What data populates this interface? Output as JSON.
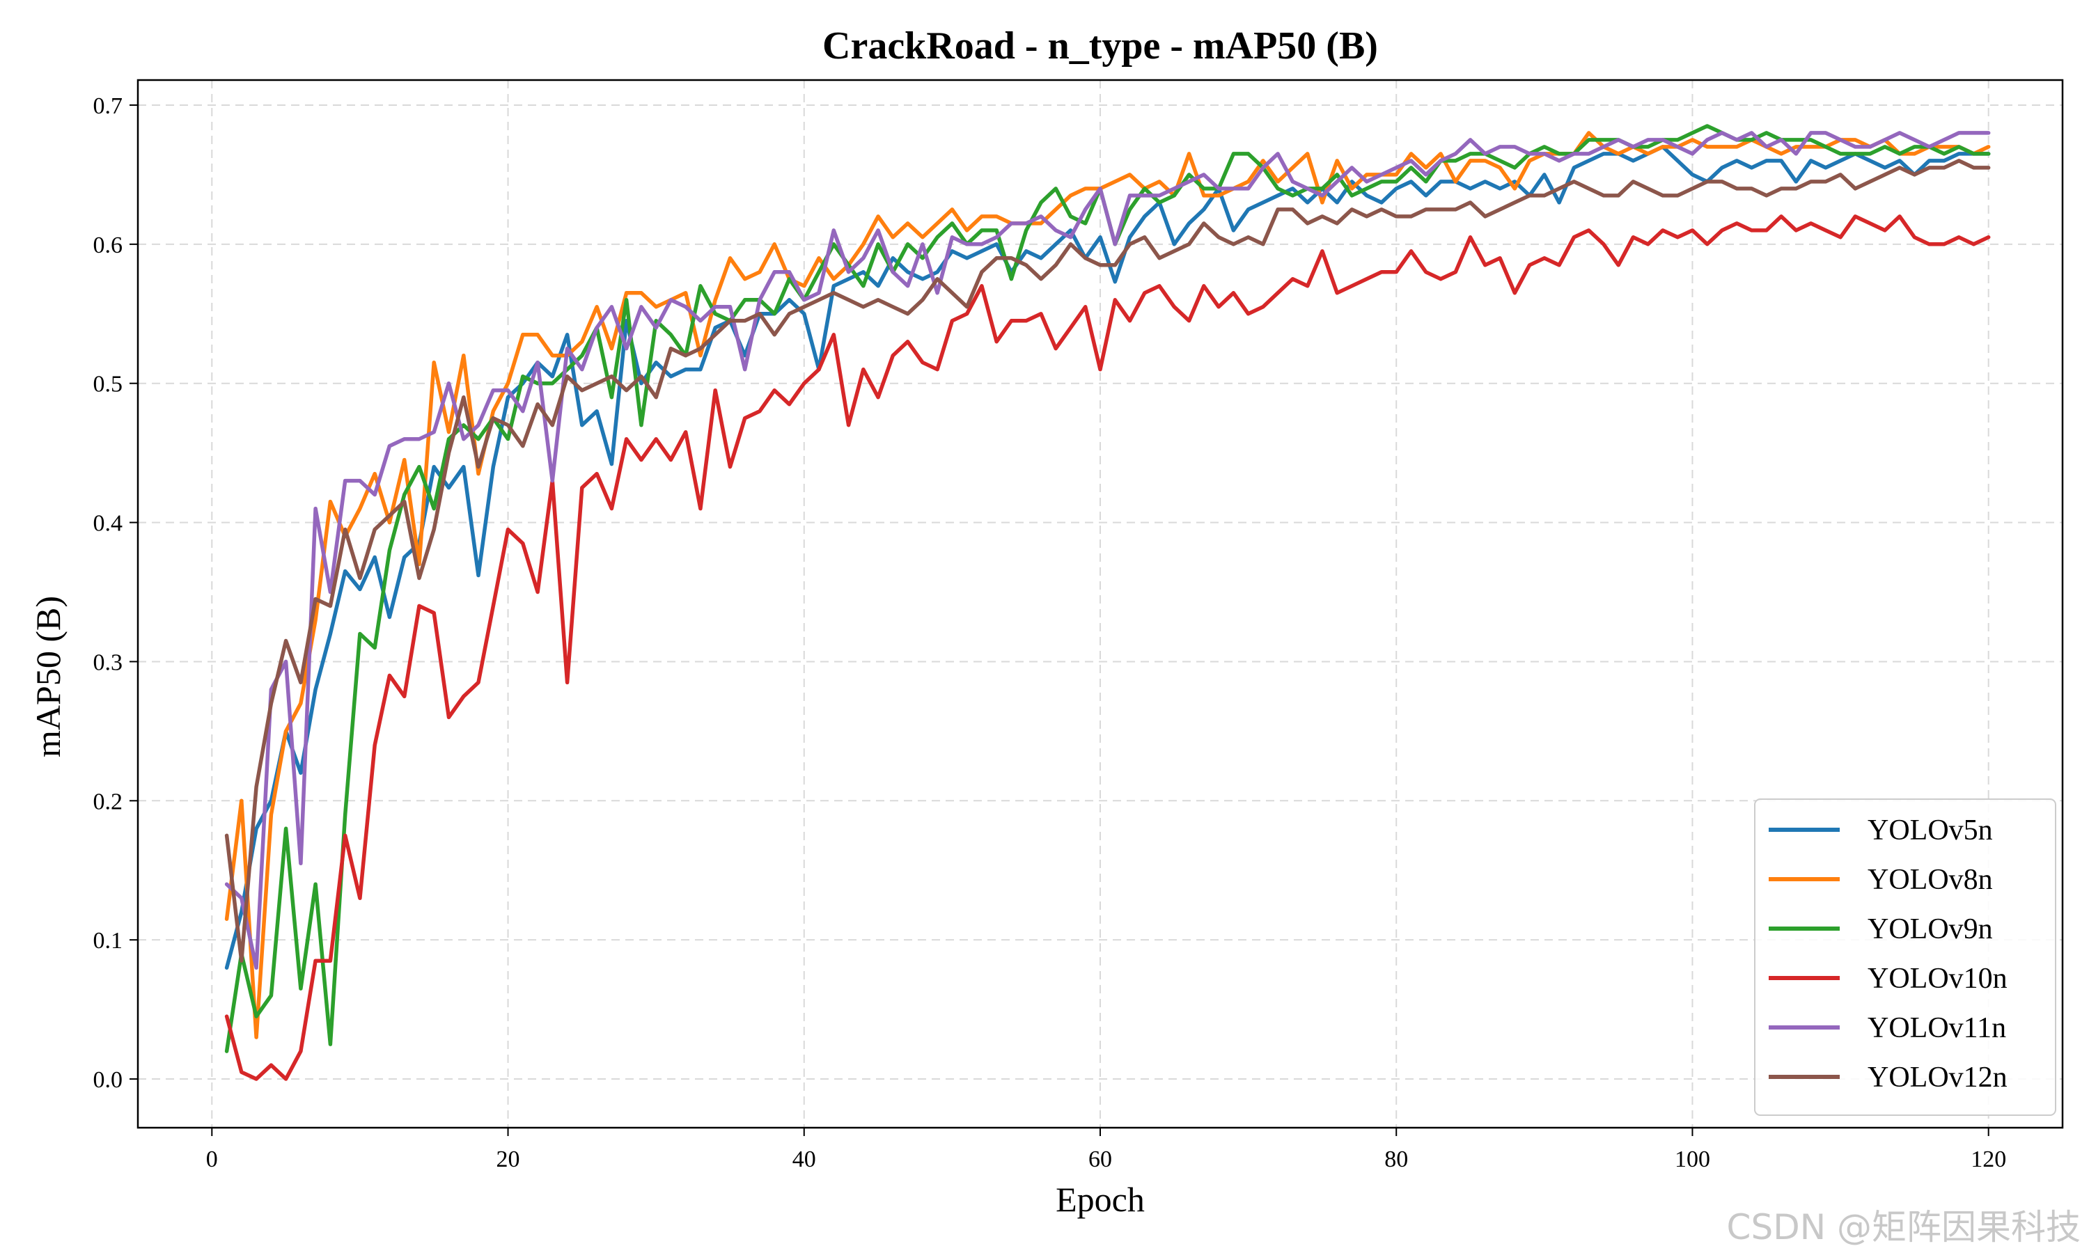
{
  "chart_data": {
    "type": "line",
    "title": "CrackRoad - n_type - mAP50 (B)",
    "xlabel": "Epoch",
    "ylabel": "mAP50 (B)",
    "xlim": [
      -5,
      125
    ],
    "ylim": [
      -0.035,
      0.718
    ],
    "xticks": [
      0,
      20,
      40,
      60,
      80,
      100,
      120
    ],
    "yticks": [
      0.0,
      0.1,
      0.2,
      0.3,
      0.4,
      0.5,
      0.6,
      0.7
    ],
    "x_tick_labels": [
      "0",
      "20",
      "40",
      "60",
      "80",
      "100",
      "120"
    ],
    "y_tick_labels": [
      "0.0",
      "0.1",
      "0.2",
      "0.3",
      "0.4",
      "0.5",
      "0.6",
      "0.7"
    ],
    "grid": true,
    "legend_position": "lower right",
    "x": [
      1,
      2,
      3,
      4,
      5,
      6,
      7,
      8,
      9,
      10,
      11,
      12,
      13,
      14,
      15,
      16,
      17,
      18,
      19,
      20,
      21,
      22,
      23,
      24,
      25,
      26,
      27,
      28,
      29,
      30,
      31,
      32,
      33,
      34,
      35,
      36,
      37,
      38,
      39,
      40,
      41,
      42,
      43,
      44,
      45,
      46,
      47,
      48,
      49,
      50,
      51,
      52,
      53,
      54,
      55,
      56,
      57,
      58,
      59,
      60,
      61,
      62,
      63,
      64,
      65,
      66,
      67,
      68,
      69,
      70,
      71,
      72,
      73,
      74,
      75,
      76,
      77,
      78,
      79,
      80,
      81,
      82,
      83,
      84,
      85,
      86,
      87,
      88,
      89,
      90,
      91,
      92,
      93,
      94,
      95,
      96,
      97,
      98,
      99,
      100,
      101,
      102,
      103,
      104,
      105,
      106,
      107,
      108,
      109,
      110,
      111,
      112,
      113,
      114,
      115,
      116,
      117,
      118,
      119,
      120
    ],
    "series": [
      {
        "name": "YOLOv5n",
        "color": "#1f77b4",
        "values": [
          0.08,
          0.12,
          0.18,
          0.2,
          0.25,
          0.22,
          0.28,
          0.32,
          0.365,
          0.352,
          0.375,
          0.332,
          0.375,
          0.385,
          0.44,
          0.425,
          0.44,
          0.362,
          0.44,
          0.49,
          0.5,
          0.515,
          0.505,
          0.535,
          0.47,
          0.48,
          0.442,
          0.545,
          0.5,
          0.515,
          0.505,
          0.51,
          0.51,
          0.54,
          0.545,
          0.52,
          0.55,
          0.55,
          0.56,
          0.55,
          0.51,
          0.57,
          0.575,
          0.58,
          0.57,
          0.59,
          0.58,
          0.575,
          0.58,
          0.595,
          0.59,
          0.595,
          0.6,
          0.58,
          0.595,
          0.59,
          0.6,
          0.61,
          0.59,
          0.605,
          0.573,
          0.605,
          0.62,
          0.63,
          0.6,
          0.615,
          0.625,
          0.64,
          0.61,
          0.625,
          0.63,
          0.635,
          0.64,
          0.63,
          0.64,
          0.63,
          0.645,
          0.635,
          0.63,
          0.64,
          0.645,
          0.635,
          0.645,
          0.645,
          0.64,
          0.645,
          0.64,
          0.645,
          0.635,
          0.65,
          0.63,
          0.655,
          0.66,
          0.665,
          0.665,
          0.66,
          0.665,
          0.67,
          0.66,
          0.65,
          0.645,
          0.655,
          0.66,
          0.655,
          0.66,
          0.66,
          0.645,
          0.66,
          0.655,
          0.66,
          0.665,
          0.66,
          0.655,
          0.66,
          0.65,
          0.66,
          0.66,
          0.665,
          0.665,
          0.665
        ]
      },
      {
        "name": "YOLOv8n",
        "color": "#ff7f0e",
        "values": [
          0.115,
          0.2,
          0.03,
          0.19,
          0.25,
          0.27,
          0.33,
          0.415,
          0.39,
          0.41,
          0.435,
          0.4,
          0.445,
          0.37,
          0.515,
          0.465,
          0.52,
          0.435,
          0.48,
          0.5,
          0.535,
          0.535,
          0.52,
          0.52,
          0.53,
          0.555,
          0.525,
          0.565,
          0.565,
          0.555,
          0.56,
          0.565,
          0.52,
          0.56,
          0.59,
          0.575,
          0.58,
          0.6,
          0.575,
          0.57,
          0.59,
          0.575,
          0.585,
          0.6,
          0.62,
          0.605,
          0.615,
          0.605,
          0.615,
          0.625,
          0.61,
          0.62,
          0.62,
          0.615,
          0.615,
          0.615,
          0.625,
          0.635,
          0.64,
          0.64,
          0.645,
          0.65,
          0.64,
          0.645,
          0.635,
          0.665,
          0.635,
          0.635,
          0.64,
          0.645,
          0.66,
          0.645,
          0.655,
          0.665,
          0.63,
          0.66,
          0.64,
          0.65,
          0.65,
          0.65,
          0.665,
          0.655,
          0.665,
          0.645,
          0.66,
          0.66,
          0.655,
          0.64,
          0.66,
          0.665,
          0.665,
          0.665,
          0.68,
          0.67,
          0.665,
          0.67,
          0.665,
          0.67,
          0.67,
          0.675,
          0.67,
          0.67,
          0.67,
          0.675,
          0.67,
          0.665,
          0.67,
          0.67,
          0.67,
          0.675,
          0.675,
          0.67,
          0.675,
          0.665,
          0.665,
          0.67,
          0.67,
          0.67,
          0.665,
          0.67
        ]
      },
      {
        "name": "YOLOv9n",
        "color": "#2ca02c",
        "values": [
          0.02,
          0.09,
          0.045,
          0.06,
          0.18,
          0.065,
          0.14,
          0.025,
          0.19,
          0.32,
          0.31,
          0.38,
          0.42,
          0.44,
          0.41,
          0.46,
          0.47,
          0.46,
          0.475,
          0.46,
          0.505,
          0.5,
          0.5,
          0.51,
          0.52,
          0.54,
          0.49,
          0.56,
          0.47,
          0.545,
          0.535,
          0.52,
          0.57,
          0.55,
          0.545,
          0.56,
          0.56,
          0.55,
          0.575,
          0.56,
          0.58,
          0.6,
          0.585,
          0.57,
          0.6,
          0.58,
          0.6,
          0.59,
          0.605,
          0.615,
          0.6,
          0.61,
          0.61,
          0.575,
          0.61,
          0.63,
          0.64,
          0.62,
          0.615,
          0.64,
          0.6,
          0.625,
          0.64,
          0.63,
          0.635,
          0.65,
          0.64,
          0.64,
          0.665,
          0.665,
          0.655,
          0.64,
          0.635,
          0.64,
          0.64,
          0.65,
          0.635,
          0.64,
          0.645,
          0.645,
          0.655,
          0.645,
          0.66,
          0.66,
          0.665,
          0.665,
          0.66,
          0.655,
          0.665,
          0.67,
          0.665,
          0.665,
          0.675,
          0.675,
          0.675,
          0.67,
          0.67,
          0.675,
          0.675,
          0.68,
          0.685,
          0.68,
          0.675,
          0.675,
          0.68,
          0.675,
          0.675,
          0.675,
          0.67,
          0.665,
          0.665,
          0.665,
          0.67,
          0.665,
          0.67,
          0.67,
          0.665,
          0.67,
          0.665,
          0.665
        ]
      },
      {
        "name": "YOLOv10n",
        "color": "#d62728",
        "values": [
          0.045,
          0.005,
          0.0,
          0.01,
          0.0,
          0.02,
          0.085,
          0.085,
          0.175,
          0.13,
          0.24,
          0.29,
          0.275,
          0.34,
          0.335,
          0.26,
          0.275,
          0.285,
          0.34,
          0.395,
          0.385,
          0.35,
          0.43,
          0.285,
          0.425,
          0.435,
          0.41,
          0.46,
          0.445,
          0.46,
          0.445,
          0.465,
          0.41,
          0.495,
          0.44,
          0.475,
          0.48,
          0.495,
          0.485,
          0.5,
          0.51,
          0.535,
          0.47,
          0.51,
          0.49,
          0.52,
          0.53,
          0.515,
          0.51,
          0.545,
          0.55,
          0.57,
          0.53,
          0.545,
          0.545,
          0.55,
          0.525,
          0.54,
          0.555,
          0.51,
          0.56,
          0.545,
          0.565,
          0.57,
          0.555,
          0.545,
          0.57,
          0.555,
          0.565,
          0.55,
          0.555,
          0.565,
          0.575,
          0.57,
          0.595,
          0.565,
          0.57,
          0.575,
          0.58,
          0.58,
          0.595,
          0.58,
          0.575,
          0.58,
          0.605,
          0.585,
          0.59,
          0.565,
          0.585,
          0.59,
          0.585,
          0.605,
          0.61,
          0.6,
          0.585,
          0.605,
          0.6,
          0.61,
          0.605,
          0.61,
          0.6,
          0.61,
          0.615,
          0.61,
          0.61,
          0.62,
          0.61,
          0.615,
          0.61,
          0.605,
          0.62,
          0.615,
          0.61,
          0.62,
          0.605,
          0.6,
          0.6,
          0.605,
          0.6,
          0.605
        ]
      },
      {
        "name": "YOLOv11n",
        "color": "#9467bd",
        "values": [
          0.14,
          0.13,
          0.08,
          0.28,
          0.3,
          0.155,
          0.41,
          0.35,
          0.43,
          0.43,
          0.42,
          0.455,
          0.46,
          0.46,
          0.465,
          0.5,
          0.46,
          0.47,
          0.495,
          0.495,
          0.48,
          0.515,
          0.43,
          0.525,
          0.51,
          0.54,
          0.555,
          0.525,
          0.555,
          0.54,
          0.56,
          0.555,
          0.545,
          0.555,
          0.555,
          0.51,
          0.56,
          0.58,
          0.58,
          0.56,
          0.565,
          0.61,
          0.58,
          0.59,
          0.61,
          0.58,
          0.57,
          0.6,
          0.565,
          0.605,
          0.6,
          0.6,
          0.605,
          0.615,
          0.615,
          0.62,
          0.61,
          0.605,
          0.625,
          0.64,
          0.6,
          0.635,
          0.635,
          0.635,
          0.64,
          0.645,
          0.65,
          0.64,
          0.64,
          0.64,
          0.655,
          0.665,
          0.645,
          0.64,
          0.635,
          0.645,
          0.655,
          0.645,
          0.65,
          0.655,
          0.66,
          0.65,
          0.66,
          0.665,
          0.675,
          0.665,
          0.67,
          0.67,
          0.665,
          0.665,
          0.66,
          0.665,
          0.665,
          0.67,
          0.675,
          0.67,
          0.675,
          0.675,
          0.67,
          0.665,
          0.675,
          0.68,
          0.675,
          0.68,
          0.67,
          0.675,
          0.665,
          0.68,
          0.68,
          0.675,
          0.67,
          0.67,
          0.675,
          0.68,
          0.675,
          0.67,
          0.675,
          0.68,
          0.68,
          0.68
        ]
      },
      {
        "name": "YOLOv12n",
        "color": "#8c564b",
        "values": [
          0.175,
          0.085,
          0.21,
          0.27,
          0.315,
          0.285,
          0.345,
          0.34,
          0.395,
          0.36,
          0.395,
          0.405,
          0.415,
          0.36,
          0.395,
          0.45,
          0.49,
          0.44,
          0.475,
          0.47,
          0.455,
          0.485,
          0.47,
          0.505,
          0.495,
          0.5,
          0.505,
          0.495,
          0.505,
          0.49,
          0.525,
          0.52,
          0.525,
          0.535,
          0.545,
          0.545,
          0.55,
          0.535,
          0.55,
          0.555,
          0.56,
          0.565,
          0.56,
          0.555,
          0.56,
          0.555,
          0.55,
          0.56,
          0.575,
          0.565,
          0.555,
          0.58,
          0.59,
          0.59,
          0.585,
          0.575,
          0.585,
          0.6,
          0.59,
          0.585,
          0.585,
          0.6,
          0.605,
          0.59,
          0.595,
          0.6,
          0.615,
          0.605,
          0.6,
          0.605,
          0.6,
          0.625,
          0.625,
          0.615,
          0.62,
          0.615,
          0.625,
          0.62,
          0.625,
          0.62,
          0.62,
          0.625,
          0.625,
          0.625,
          0.63,
          0.62,
          0.625,
          0.63,
          0.635,
          0.635,
          0.64,
          0.645,
          0.64,
          0.635,
          0.635,
          0.645,
          0.64,
          0.635,
          0.635,
          0.64,
          0.645,
          0.645,
          0.64,
          0.64,
          0.635,
          0.64,
          0.64,
          0.645,
          0.645,
          0.65,
          0.64,
          0.645,
          0.65,
          0.655,
          0.65,
          0.655,
          0.655,
          0.66,
          0.655,
          0.655
        ]
      }
    ]
  },
  "watermark": "CSDN @矩阵因果科技"
}
